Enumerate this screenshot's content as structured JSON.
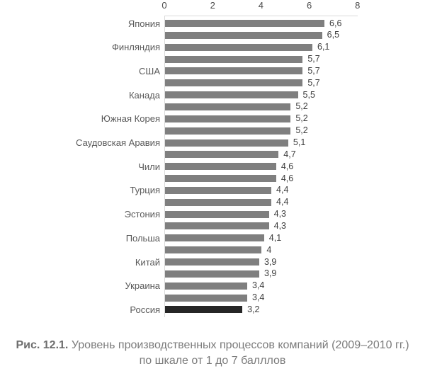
{
  "chart_data": {
    "type": "bar",
    "orientation": "horizontal",
    "title": "",
    "xlabel": "",
    "ylabel": "",
    "xlim": [
      0,
      8
    ],
    "x_ticks": [
      0,
      2,
      4,
      6,
      8
    ],
    "grid": false,
    "legend": false,
    "bar_color": "#7f7f7f",
    "highlight_color": "#262626",
    "highlight_index": 24,
    "categories": [
      "Япония",
      "",
      "Финляндия",
      "",
      "США",
      "",
      "Канада",
      "",
      "Южная Корея",
      "",
      "Саудовская Аравия",
      "",
      "Чили",
      "",
      "Турция",
      "",
      "Эстония",
      "",
      "Польша",
      "",
      "Китай",
      "",
      "Украина",
      "",
      "Россия"
    ],
    "values": [
      6.6,
      6.5,
      6.1,
      5.7,
      5.7,
      5.7,
      5.5,
      5.2,
      5.2,
      5.2,
      5.1,
      4.7,
      4.6,
      4.6,
      4.4,
      4.4,
      4.3,
      4.3,
      4.1,
      4,
      3.9,
      3.9,
      3.4,
      3.4,
      3.2
    ],
    "value_labels": [
      "6,6",
      "6,5",
      "6,1",
      "5,7",
      "5,7",
      "5,7",
      "5,5",
      "5,2",
      "5,2",
      "5,2",
      "5,1",
      "4,7",
      "4,6",
      "4,6",
      "4,4",
      "4,4",
      "4,3",
      "4,3",
      "4,1",
      "4",
      "3,9",
      "3,9",
      "3,4",
      "3,4",
      "3,2"
    ]
  },
  "caption": {
    "prefix": "Рис. 12.1.",
    "line1_rest": " Уровень производственных процессов компаний (2009–2010 гг.)",
    "line2": "по шкале от 1 до 7 балллов"
  }
}
